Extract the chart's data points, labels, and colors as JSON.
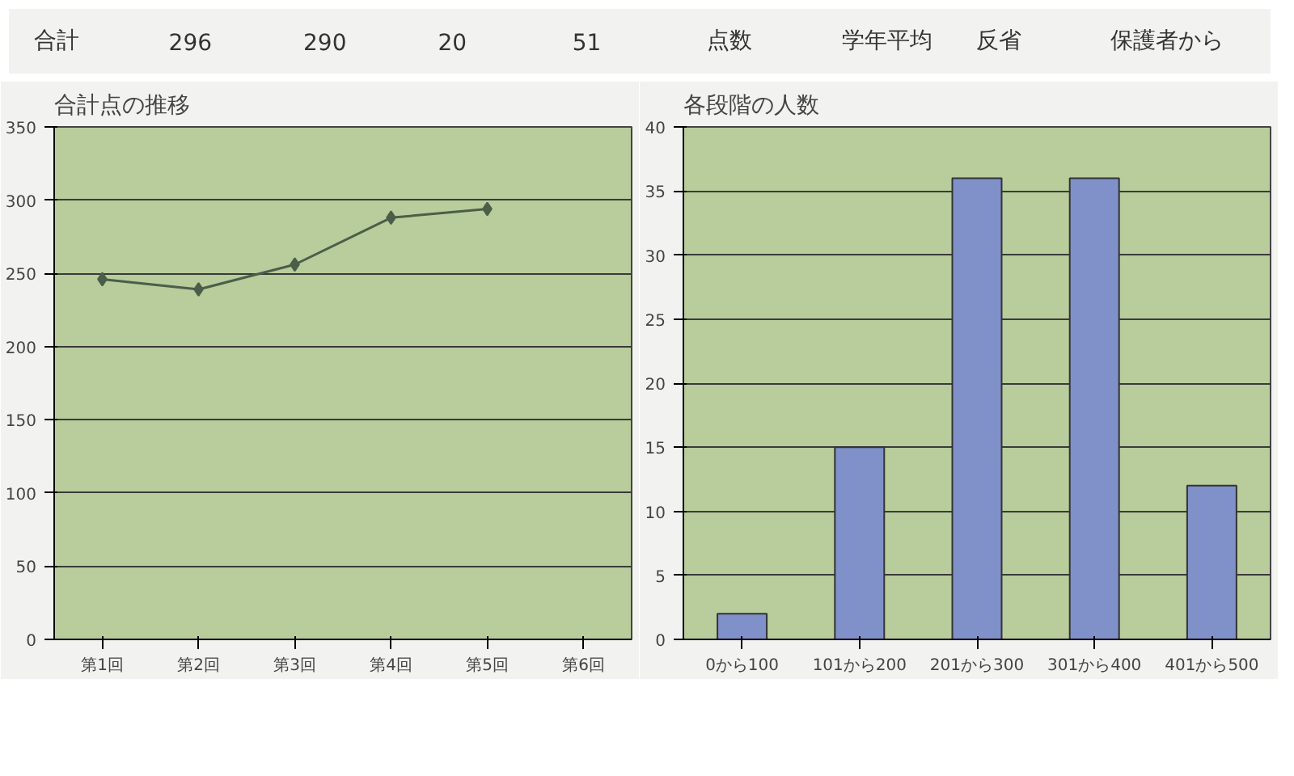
{
  "chart_data": [
    {
      "type": "other",
      "annotations": [
        "合計",
        "296",
        "290",
        "20",
        "51",
        "点数",
        "学年平均",
        "反省",
        "保護者から"
      ]
    },
    {
      "type": "line",
      "title": "合計点の推移",
      "categories": [
        "第1回",
        "第2回",
        "第3回",
        "第4回",
        "第5回",
        "第6回"
      ],
      "series": [
        {
          "color": "#4a5e48",
          "values": [
            246,
            239,
            256,
            288,
            294,
            null
          ]
        }
      ],
      "ylim": [
        0,
        350
      ],
      "yticks": [
        0,
        50,
        100,
        150,
        200,
        250,
        300,
        350
      ],
      "grid": "y",
      "marker": "diamond",
      "line_style": "solid"
    },
    {
      "type": "bar",
      "title": "各段階の人数",
      "categories": [
        "0から100",
        "101から200",
        "201から300",
        "301から400",
        "401から500"
      ],
      "series": [
        {
          "color": "#8090c8",
          "values": [
            2,
            15,
            36,
            36,
            12
          ]
        }
      ],
      "ylim": [
        0,
        40
      ],
      "yticks": [
        0,
        5,
        10,
        15,
        20,
        25,
        30,
        35,
        40
      ],
      "grid": "y"
    }
  ]
}
